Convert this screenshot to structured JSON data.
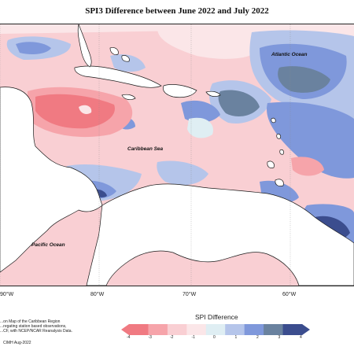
{
  "map": {
    "title": "SPI3 Difference between June 2022 and July 2022",
    "oceans": [
      {
        "name": "Atlantic Ocean"
      },
      {
        "name": "Caribbean Sea"
      },
      {
        "name": "Pacific Ocean"
      }
    ],
    "longitude_ticks": [
      "90°W",
      "80°W",
      "70°W",
      "60°W"
    ],
    "note_lines": [
      "...on Map of the Caribbean Region",
      "...regating station based observations,",
      "...CF, with NCEP/NCAR Reanalysis Data."
    ],
    "credit": "CIMH Aug-2022"
  },
  "legend": {
    "title": "SPI Difference",
    "ticks": [
      "-4",
      "-3",
      "-2",
      "-1",
      "0",
      "1",
      "2",
      "3",
      "4"
    ],
    "colors": [
      "#f07a82",
      "#f6a4aa",
      "#f9cfd3",
      "#fbe6e8",
      "#dfeef3",
      "#b5c5ea",
      "#7f98db",
      "#6a829f",
      "#3b4d8e"
    ]
  },
  "colors": {
    "land": "#ffffff",
    "coast": "#1a1a1a",
    "dry_strong": "#f07a82",
    "dry": "#f6a4aa",
    "dry_light": "#f9cfd3",
    "neutral": "#dfeef3",
    "wet": "#7f98db",
    "wet_strong": "#6a829f",
    "wet_extreme": "#3b4d8e"
  }
}
